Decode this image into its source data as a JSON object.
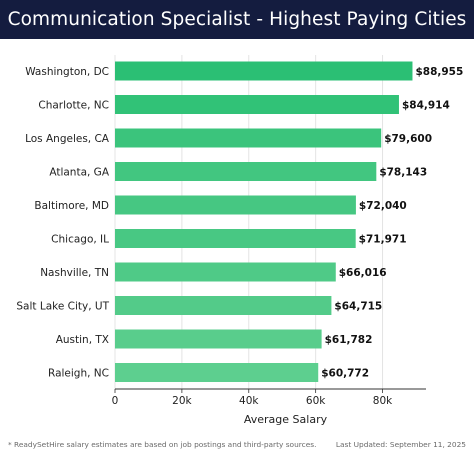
{
  "header": {
    "title": "Communication Specialist - Highest Paying Cities"
  },
  "chart_data": {
    "type": "bar",
    "orientation": "horizontal",
    "categories": [
      "Washington, DC",
      "Charlotte, NC",
      "Los Angeles, CA",
      "Atlanta, GA",
      "Baltimore, MD",
      "Chicago, IL",
      "Nashville, TN",
      "Salt Lake City, UT",
      "Austin, TX",
      "Raleigh, NC"
    ],
    "values": [
      88955,
      84914,
      79600,
      78143,
      72040,
      71971,
      66016,
      64715,
      61782,
      60772
    ],
    "value_labels": [
      "$88,955",
      "$84,914",
      "$79,600",
      "$78,143",
      "$72,040",
      "$71,971",
      "$66,016",
      "$64,715",
      "$61,782",
      "$60,772"
    ],
    "xlabel": "Average Salary",
    "ylabel": "",
    "xlim": [
      0,
      93000
    ],
    "xticks": [
      0,
      20000,
      40000,
      60000,
      80000
    ],
    "xtick_labels": [
      "0",
      "20k",
      "40k",
      "60k",
      "80k"
    ],
    "grid": "vertical",
    "colors": [
      "#2bbf74",
      "#31c277",
      "#3bc47c",
      "#42c680",
      "#46c782",
      "#48c883",
      "#4fca87",
      "#53cb89",
      "#59cd8c",
      "#5dcf8f"
    ]
  },
  "footer": {
    "note": "* ReadySetHire salary estimates are based on job postings and third-party sources.",
    "updated": "Last Updated: September 11, 2025"
  }
}
